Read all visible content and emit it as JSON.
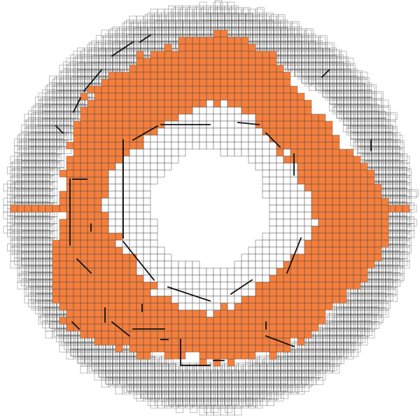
{
  "figure": {
    "kind": "voxel-annulus",
    "colors": {
      "background": "#ffffff",
      "filled_cell": "#f57f3c",
      "grid_line": "#4a4a4a",
      "outline_line": "#555555",
      "accent_edge": "#111111"
    },
    "description_labels": []
  }
}
